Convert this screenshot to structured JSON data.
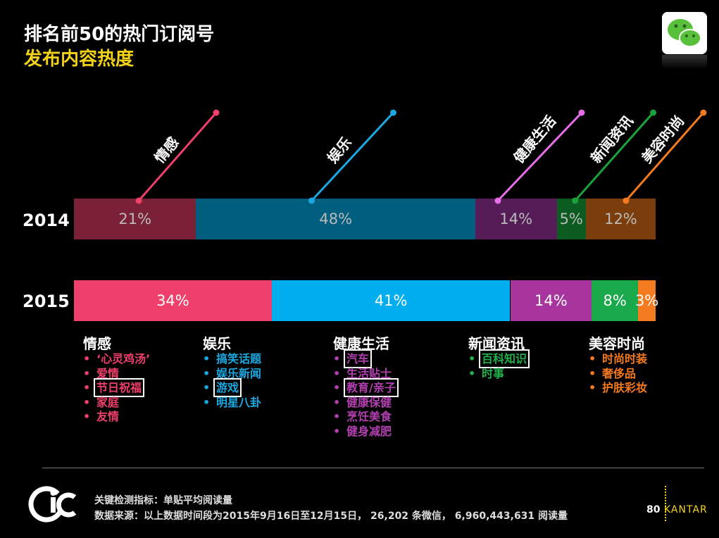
{
  "header": {
    "title": "排名前50的热门订阅号",
    "subtitle": "发布内容热度"
  },
  "chart_data": {
    "type": "bar",
    "stacked": true,
    "orientation": "horizontal",
    "normalized_percent": true,
    "categories": [
      "2014",
      "2015"
    ],
    "series": [
      {
        "name": "情感",
        "values": [
          21,
          34
        ],
        "colors": [
          "#7a2138",
          "#ef3f6b"
        ],
        "label_colors": [
          "#bbbbbb",
          "#ffffff"
        ]
      },
      {
        "name": "娱乐",
        "values": [
          48,
          41
        ],
        "colors": [
          "#005e7e",
          "#00aeef"
        ],
        "label_colors": [
          "#bbbbbb",
          "#ffffff"
        ]
      },
      {
        "name": "健康生活",
        "values": [
          14,
          14
        ],
        "colors": [
          "#551c57",
          "#a8359e"
        ],
        "label_colors": [
          "#bbbbbb",
          "#ffffff"
        ]
      },
      {
        "name": "新闻资讯",
        "values": [
          5,
          8
        ],
        "colors": [
          "#0c5b21",
          "#19a94b"
        ],
        "label_colors": [
          "#bbbbbb",
          "#ffffff"
        ]
      },
      {
        "name": "美容时尚",
        "values": [
          12,
          3
        ],
        "colors": [
          "#7b3d0b",
          "#f47a20"
        ],
        "label_colors": [
          "#bbbbbb",
          "#ffffff"
        ]
      }
    ],
    "data_labels": [
      [
        "21%",
        "48%",
        "14%",
        "5%",
        "12%"
      ],
      [
        "34%",
        "41%",
        "14%",
        "8%",
        "3%"
      ]
    ],
    "callout_colors": [
      "#ef3f6b",
      "#1ba8e0",
      "#e86ee8",
      "#1aa33a",
      "#f47a20"
    ]
  },
  "categories_detail": [
    {
      "name": "情感",
      "color": "#ef3f6b",
      "items": [
        "‘心灵鸡汤’",
        "爱情",
        "节日祝福",
        "家庭",
        "友情"
      ],
      "highlighted": [
        2
      ]
    },
    {
      "name": "娱乐",
      "color": "#1ba8e0",
      "items": [
        "搞笑话题",
        "娱乐新闻",
        "游戏",
        "明星八卦"
      ],
      "highlighted": [
        2
      ]
    },
    {
      "name": "健康生活",
      "color": "#b23fb0",
      "items": [
        "汽车",
        "生活贴士",
        "教育/亲子",
        "健康保健",
        "烹饪美食",
        "健身减肥"
      ],
      "highlighted": [
        0,
        2
      ]
    },
    {
      "name": "新闻资讯",
      "color": "#22b24c",
      "items": [
        "百科知识",
        "时事"
      ],
      "highlighted": [
        0
      ]
    },
    {
      "name": "美容时尚",
      "color": "#f47a20",
      "items": [
        "时尚时装",
        "奢侈品",
        "护肤彩妆"
      ],
      "highlighted": []
    }
  ],
  "footer": {
    "metric_note": "关键检测指标：单贴平均阅读量",
    "source_note": "数据来源：以上数据时间段为2015年9月16日至12月15日， 26,202 条微信， 6,960,443,631 阅读量",
    "page_number": "80",
    "brand": "KANTAR",
    "logo_name": "cic-logo"
  },
  "icons": [
    "wechat-icon",
    "cic-logo",
    "kantar-logo"
  ]
}
